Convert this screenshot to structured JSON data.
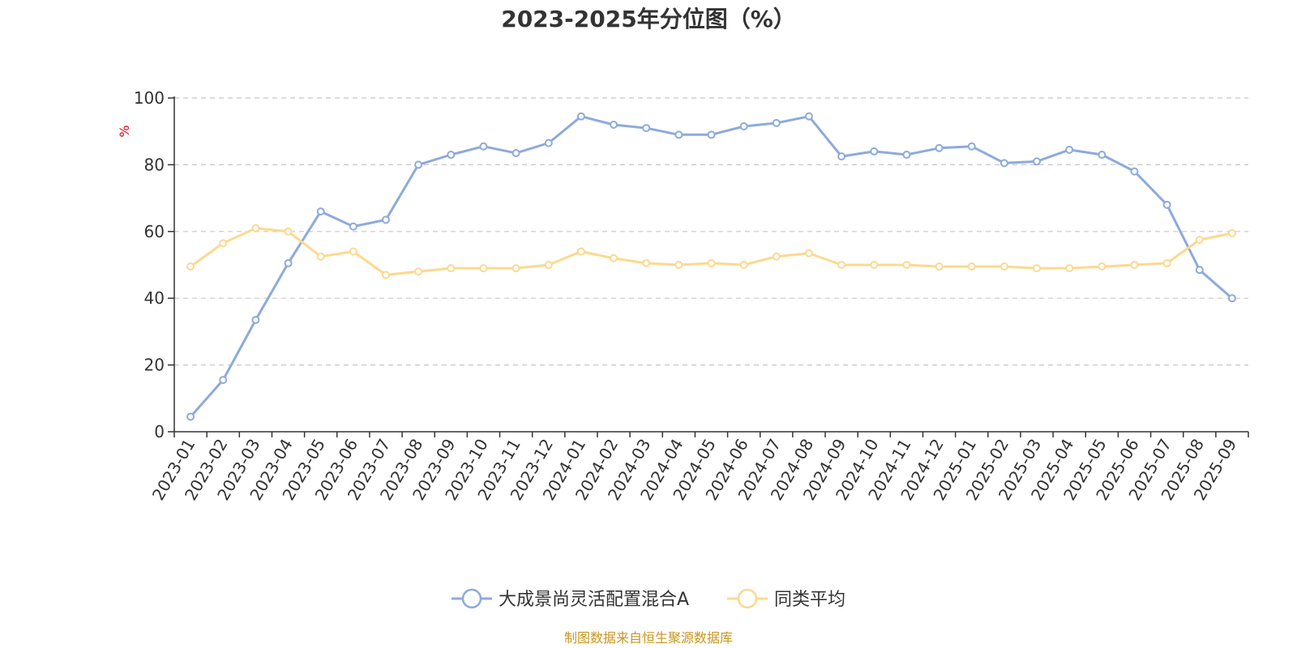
{
  "chart_data": {
    "type": "line",
    "title": "2023-2025年分位图（%）",
    "ylabel": "%",
    "ylim": [
      0,
      100
    ],
    "yticks": [
      "0",
      "20",
      "40",
      "60",
      "80",
      "100"
    ],
    "grid": true,
    "legend_position": "bottom-center",
    "categories": [
      "2023-01",
      "2023-02",
      "2023-03",
      "2023-04",
      "2023-05",
      "2023-06",
      "2023-07",
      "2023-08",
      "2023-09",
      "2023-10",
      "2023-11",
      "2023-12",
      "2024-01",
      "2024-02",
      "2024-03",
      "2024-04",
      "2024-05",
      "2024-06",
      "2024-07",
      "2024-08",
      "2024-09",
      "2024-10",
      "2024-11",
      "2024-12",
      "2025-01",
      "2025-02",
      "2025-03",
      "2025-04",
      "2025-05",
      "2025-06",
      "2025-07",
      "2025-08",
      "2025-09"
    ],
    "series": [
      {
        "name": "大成景尚灵活配置混合A",
        "color": "#8eaadb",
        "values": [
          4.5,
          15.5,
          33.5,
          50.5,
          66,
          61.5,
          63.5,
          80,
          83,
          85.5,
          83.5,
          86.5,
          94.5,
          92,
          91,
          89,
          89,
          91.5,
          92.5,
          94.5,
          82.5,
          84,
          83,
          85,
          85.5,
          80.5,
          81,
          84.5,
          83,
          78,
          68,
          48.5,
          40
        ]
      },
      {
        "name": "同类平均",
        "color": "#fcd98f",
        "values": [
          49.5,
          56.5,
          61,
          60,
          52.5,
          54,
          47,
          48,
          49,
          49,
          49,
          50,
          54,
          52,
          50.5,
          50,
          50.5,
          50,
          52.5,
          53.5,
          50,
          50,
          50,
          49.5,
          49.5,
          49.5,
          49,
          49,
          49.5,
          50,
          50.5,
          57.5,
          59.5
        ]
      }
    ],
    "source": "制图数据来自恒生聚源数据库",
    "unit_color": "#e60012",
    "source_color": "#c8961e"
  }
}
